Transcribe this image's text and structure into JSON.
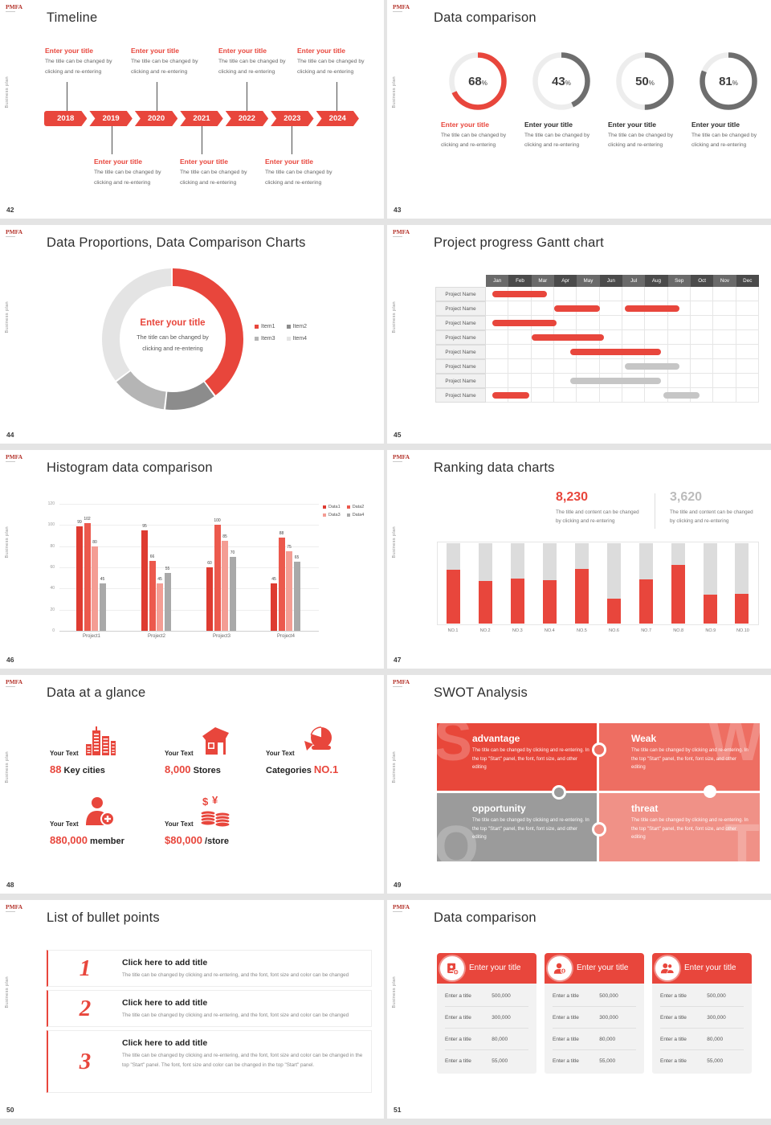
{
  "common": {
    "logo": "PMFA",
    "sidebar_text": "Business plan"
  },
  "colors": {
    "accent": "#e8463c",
    "ring_gray": "#6e6e6e",
    "ring_track": "#ededed",
    "bar_gray": "#c6c6c6"
  },
  "slides": {
    "timeline": {
      "page": "42",
      "title": "Timeline",
      "years": [
        "2018",
        "2019",
        "2020",
        "2021",
        "2022",
        "2023",
        "2024"
      ],
      "item_title": "Enter your title",
      "item_body_line1": "The title can be changed by",
      "item_body_line2": "clicking and re-entering"
    },
    "rings": {
      "page": "43",
      "title": "Data comparison",
      "item_title": "Enter your title",
      "item_body_line1": "The title can be changed by",
      "item_body_line2": "clicking and re-entering"
    },
    "donut": {
      "page": "44",
      "title": "Data Proportions, Data Comparison Charts",
      "center_title": "Enter your title",
      "center_body_line1": "The title can be changed by",
      "center_body_line2": "clicking and re-entering"
    },
    "gantt": {
      "page": "45",
      "title": "Project progress Gantt chart"
    },
    "histogram": {
      "page": "46",
      "title": "Histogram data comparison"
    },
    "ranking": {
      "page": "47",
      "title": "Ranking data charts",
      "stat1_value": "8,230",
      "stat2_value": "3,620",
      "stat_body_line1": "The title and content can be changed",
      "stat_body_line2": "by clicking and re-entering"
    },
    "glance": {
      "page": "48",
      "title": "Data at a glance",
      "stats": [
        {
          "label": "Your Text",
          "icon": "city-icon",
          "parts": [
            {
              "t": "88",
              "red": true
            },
            {
              "t": " Key cities",
              "red": false
            }
          ]
        },
        {
          "label": "Your Text",
          "icon": "store-icon",
          "parts": [
            {
              "t": "8,000",
              "red": true
            },
            {
              "t": " Stores",
              "red": false
            }
          ]
        },
        {
          "label": "Your Text",
          "icon": "pie-icon",
          "parts": [
            {
              "t": "Categories ",
              "red": false
            },
            {
              "t": "NO.1",
              "red": true
            }
          ]
        },
        {
          "label": "Your Text",
          "icon": "member-icon",
          "parts": [
            {
              "t": "880,000",
              "red": true
            },
            {
              "t": " member",
              "red": false
            }
          ]
        },
        {
          "label": "Your Text",
          "icon": "coins-icon",
          "parts": [
            {
              "t": "$80,000",
              "red": true
            },
            {
              "t": " /store",
              "red": false
            }
          ]
        }
      ]
    },
    "swot": {
      "page": "49",
      "title": "SWOT Analysis",
      "quad_body": "The title can be changed by clicking and re-entering. In the top \"Start\" panel, the font, font size, and other editing",
      "quads": [
        {
          "letter": "S",
          "title": "advantage",
          "bg": "#e8473a"
        },
        {
          "letter": "W",
          "title": "Weak",
          "bg": "#ee6e62"
        },
        {
          "letter": "O",
          "title": "opportunity",
          "bg": "#9b9b9b"
        },
        {
          "letter": "T",
          "title": "threat",
          "bg": "#f09187"
        }
      ]
    },
    "bullets": {
      "page": "50",
      "title": "List of bullet points",
      "items": [
        {
          "num": "1",
          "title": "Click here to add title",
          "body": "The title can be changed by clicking and re-entering, and the font, font size and color can be changed"
        },
        {
          "num": "2",
          "title": "Click here to add title",
          "body": "The title can be changed by clicking and re-entering, and the font, font size and color can be changed"
        },
        {
          "num": "3",
          "title": "Click here to add title",
          "body": "The title can be changed by clicking and re-entering, and the font, font size and color can be changed in the top \"Start\" panel. The font, font size and color can be changed in the top \"Start\" panel."
        }
      ]
    },
    "cards": {
      "page": "51",
      "title": "Data comparison",
      "header_title": "Enter your title",
      "icons": [
        "id-card-icon",
        "person-add-icon",
        "team-icon"
      ],
      "rows": [
        {
          "label": "Enter a title",
          "value": "500,000"
        },
        {
          "label": "Enter a title",
          "value": "300,000"
        },
        {
          "label": "Enter a title",
          "value": "80,000"
        },
        {
          "label": "Enter a title",
          "value": "55,000"
        }
      ]
    }
  },
  "chart_data": [
    {
      "slide_page": "43",
      "type": "pie",
      "subtype": "progress-rings",
      "unit": "%",
      "values": [
        68,
        43,
        50,
        81
      ],
      "colors": [
        "#e8463c",
        "#6e6e6e",
        "#6e6e6e",
        "#6e6e6e"
      ],
      "track_color": "#ededed"
    },
    {
      "slide_page": "44",
      "type": "pie",
      "subtype": "donut",
      "labels": [
        "Item1",
        "Item2",
        "Item3",
        "Item4"
      ],
      "values": [
        40,
        12,
        13,
        35
      ],
      "colors": [
        "#e8463c",
        "#8c8c8c",
        "#b5b5b5",
        "#e4e4e4"
      ],
      "legend_position": "right"
    },
    {
      "slide_page": "45",
      "type": "table",
      "subtype": "gantt",
      "months": [
        "Jan",
        "Feb",
        "Mar",
        "Apr",
        "May",
        "Jun",
        "Jul",
        "Aug",
        "Sep",
        "Oct",
        "Nov",
        "Dec"
      ],
      "row_label": "Project Name",
      "num_rows": 8,
      "bars": [
        {
          "row": 0,
          "start": 0.3,
          "end": 2.7,
          "color": "#e8463c"
        },
        {
          "row": 1,
          "start": 3.0,
          "end": 5.0,
          "color": "#e8463c"
        },
        {
          "row": 1,
          "start": 6.1,
          "end": 8.5,
          "color": "#e8463c"
        },
        {
          "row": 2,
          "start": 0.3,
          "end": 3.1,
          "color": "#e8463c"
        },
        {
          "row": 3,
          "start": 2.0,
          "end": 5.2,
          "color": "#e8463c"
        },
        {
          "row": 4,
          "start": 3.7,
          "end": 7.7,
          "color": "#e8463c"
        },
        {
          "row": 5,
          "start": 6.1,
          "end": 8.5,
          "color": "#c6c6c6"
        },
        {
          "row": 6,
          "start": 3.7,
          "end": 7.7,
          "color": "#c6c6c6"
        },
        {
          "row": 7,
          "start": 0.3,
          "end": 1.9,
          "color": "#e8463c"
        },
        {
          "row": 7,
          "start": 7.8,
          "end": 9.4,
          "color": "#c6c6c6"
        }
      ]
    },
    {
      "slide_page": "46",
      "type": "bar",
      "categories": [
        "Project1",
        "Project2",
        "Project3",
        "Project4"
      ],
      "series": [
        {
          "name": "Data1",
          "color": "#de3b31",
          "values": [
            99,
            95,
            60,
            45
          ]
        },
        {
          "name": "Data2",
          "color": "#ec594d",
          "values": [
            102,
            66,
            100,
            88
          ]
        },
        {
          "name": "Data3",
          "color": "#f49d94",
          "values": [
            80,
            45,
            85,
            75
          ]
        },
        {
          "name": "Data4",
          "color": "#a9a9a9",
          "values": [
            45,
            55,
            70,
            65
          ]
        }
      ],
      "ylim": [
        0,
        120
      ],
      "yticks": [
        0,
        20,
        40,
        60,
        80,
        100,
        120
      ],
      "grid": true,
      "legend_position": "right"
    },
    {
      "slide_page": "47",
      "type": "bar",
      "subtype": "fill-to-max",
      "categories": [
        "NO.1",
        "NO.2",
        "NO.3",
        "NO.4",
        "NO.5",
        "NO.6",
        "NO.7",
        "NO.8",
        "NO.9",
        "NO.10"
      ],
      "values": [
        67,
        53,
        56,
        54,
        68,
        31,
        55,
        73,
        36,
        37
      ],
      "max": 100
    }
  ]
}
